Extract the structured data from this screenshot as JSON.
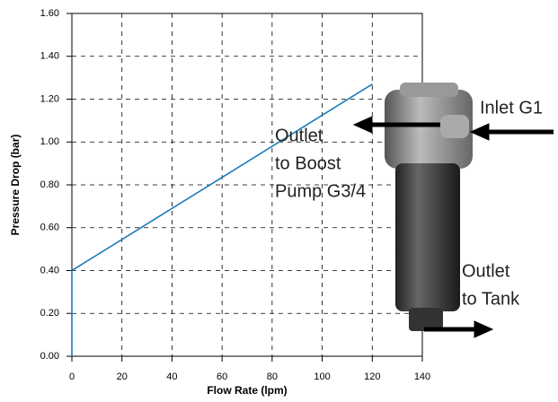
{
  "chart_data": {
    "type": "line",
    "x_label": "Flow Rate (lpm)",
    "y_label": "Pressure Drop (bar)",
    "x": [
      0,
      0,
      120
    ],
    "series": [
      {
        "color": "#1b7bb8",
        "values": [
          0,
          0.4,
          1.27
        ]
      }
    ],
    "xlim": [
      0,
      140
    ],
    "xticks": [
      0,
      20,
      40,
      60,
      80,
      100,
      120,
      140
    ],
    "ylim": [
      0,
      1.6
    ],
    "yticks": [
      {
        "value": 0,
        "label": "0.00"
      },
      {
        "value": 0.2,
        "label": "0.20"
      },
      {
        "value": 0.4,
        "label": "0.40"
      },
      {
        "value": 0.6,
        "label": "0.60"
      },
      {
        "value": 0.8,
        "label": "0.80"
      },
      {
        "value": 1.0,
        "label": "1.00"
      },
      {
        "value": 1.2,
        "label": "1.20"
      },
      {
        "value": 1.4,
        "label": "1.40"
      },
      {
        "value": 1.6,
        "label": "1.60"
      }
    ],
    "grid": true,
    "annotations": [
      [
        "Outlet",
        "to Boost",
        "Pump G3/4"
      ],
      [
        "Inlet G1"
      ],
      [
        "Outlet",
        "to Tank"
      ]
    ]
  }
}
